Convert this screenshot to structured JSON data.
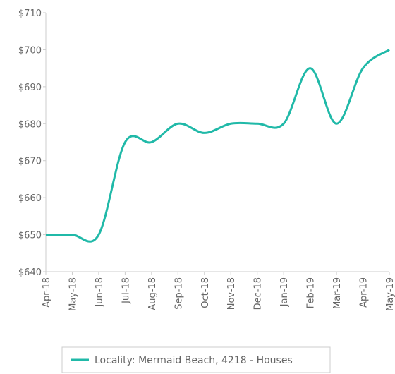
{
  "chart_data": {
    "type": "line",
    "categories": [
      "Apr-18",
      "May-18",
      "Jun-18",
      "Jul-18",
      "Aug-18",
      "Sep-18",
      "Oct-18",
      "Nov-18",
      "Dec-18",
      "Jan-19",
      "Feb-19",
      "Mar-19",
      "Apr-19",
      "May-19"
    ],
    "series": [
      {
        "name": "Locality: Mermaid Beach, 4218 - Houses",
        "color": "#20b9a8",
        "values": [
          650,
          650,
          650,
          675,
          675,
          680,
          677.5,
          680,
          680,
          680,
          695,
          680,
          695,
          700
        ]
      }
    ],
    "ylim": [
      640,
      710
    ],
    "yticks": [
      {
        "value": 640,
        "label": "$640"
      },
      {
        "value": 650,
        "label": "$650"
      },
      {
        "value": 660,
        "label": "$660"
      },
      {
        "value": 670,
        "label": "$670"
      },
      {
        "value": 680,
        "label": "$680"
      },
      {
        "value": 690,
        "label": "$690"
      },
      {
        "value": 700,
        "label": "$700"
      },
      {
        "value": 710,
        "label": "$710"
      }
    ]
  }
}
